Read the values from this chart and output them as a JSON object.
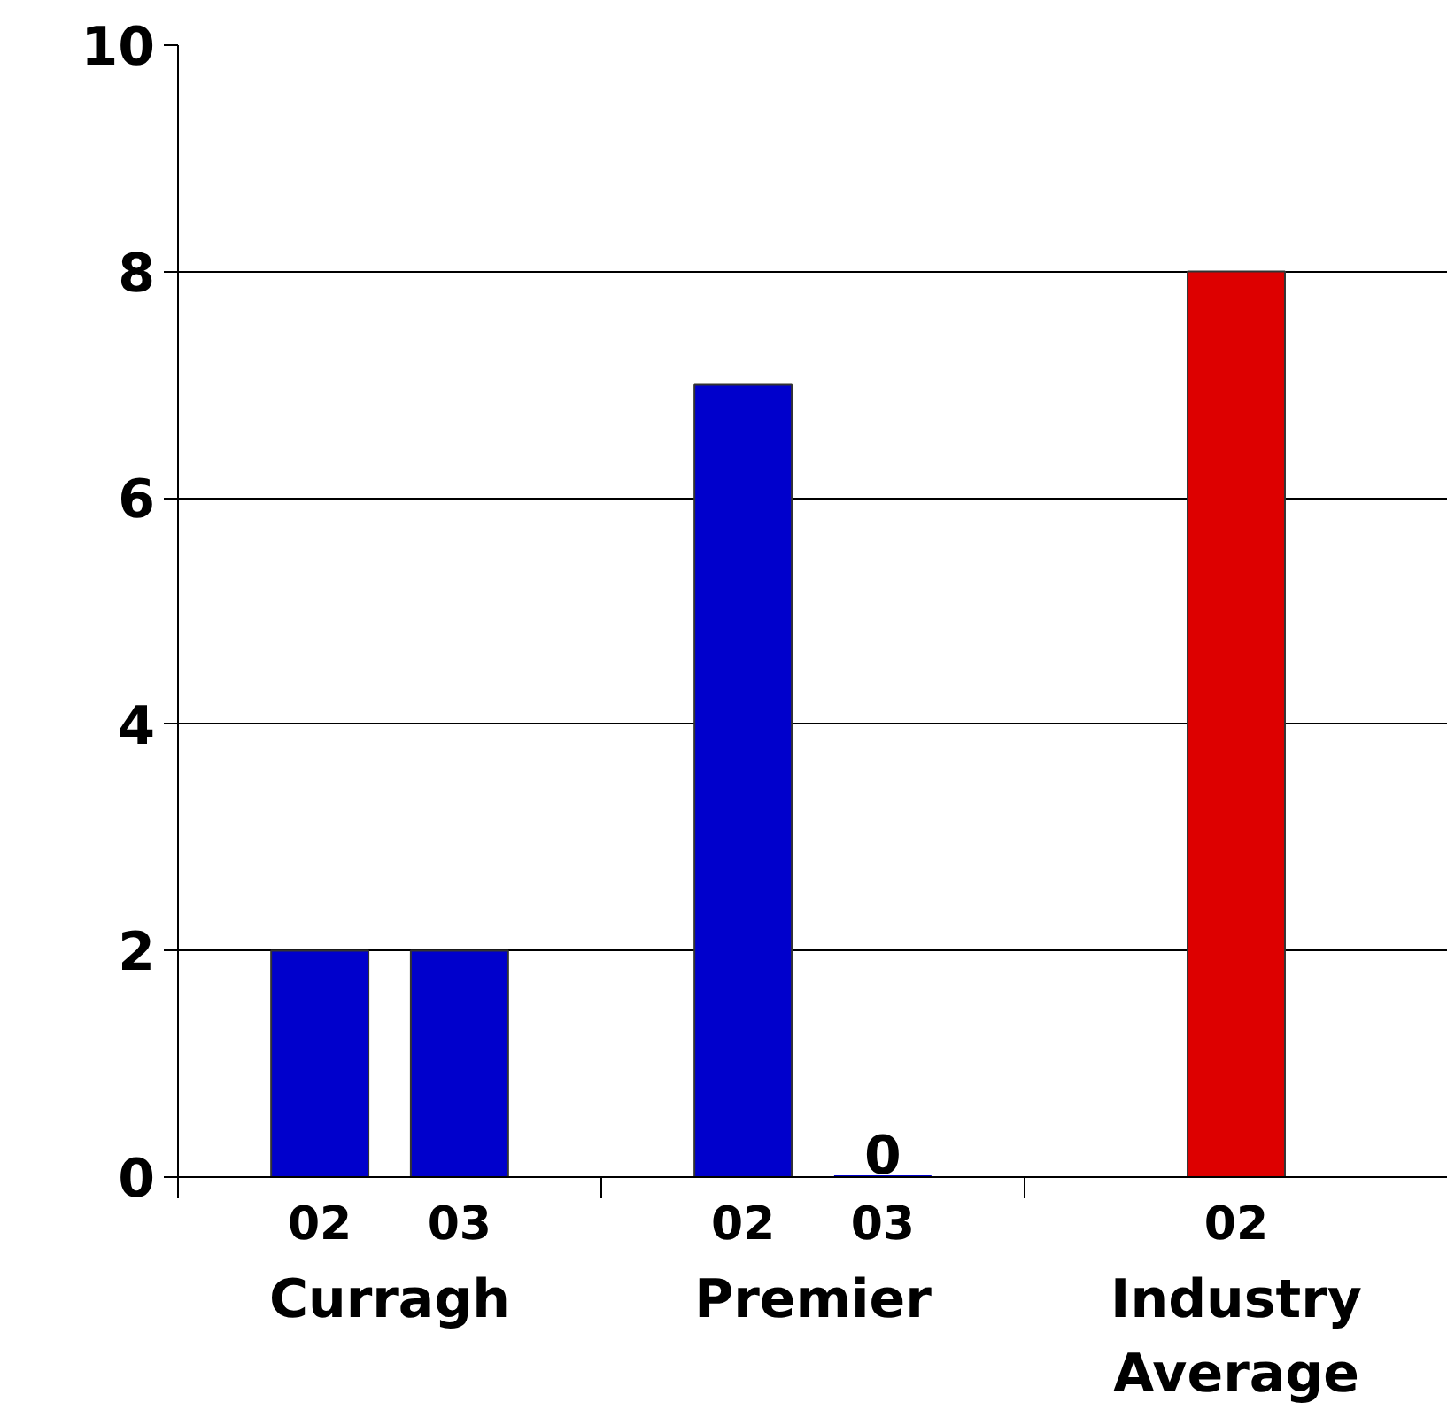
{
  "chart_data": {
    "type": "bar",
    "categories": [
      "Curragh",
      "Premier",
      "Industry Average"
    ],
    "series": [
      {
        "name": "02",
        "color": "#0000cc",
        "colors": [
          "#0000cc",
          "#0000cc",
          "#dd0000"
        ],
        "values": [
          2,
          7,
          8
        ]
      },
      {
        "name": "03",
        "color": "#0000cc",
        "values": [
          2,
          0,
          null
        ],
        "value_labels": [
          null,
          "0",
          null
        ]
      }
    ],
    "ylim": [
      0,
      10
    ],
    "yticks": [
      0,
      2,
      4,
      6,
      8,
      10
    ],
    "grid": "y"
  }
}
